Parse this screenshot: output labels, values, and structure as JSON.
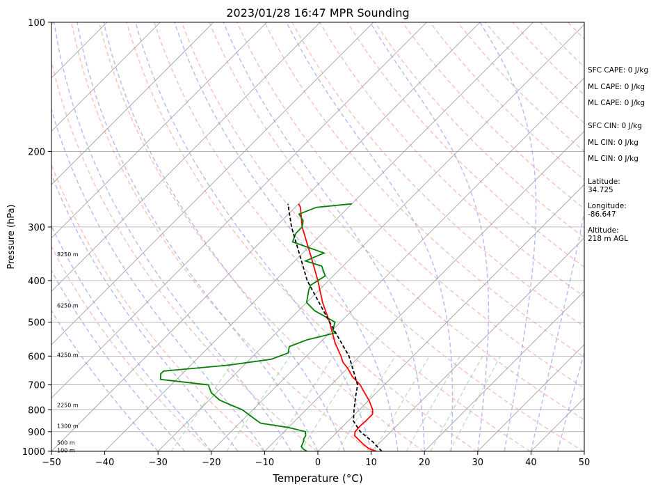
{
  "chart_data": {
    "type": "line",
    "title": "2023/01/28 16:47 MPR Sounding",
    "xlabel": "Temperature (°C)",
    "ylabel": "Pressure (hPa)",
    "xlim": [
      -50,
      50
    ],
    "ylim": [
      1000,
      100
    ],
    "yscale": "log",
    "skew_t": true,
    "grid": true,
    "x_ticks": [
      -50,
      -40,
      -30,
      -20,
      -10,
      0,
      10,
      20,
      30,
      40,
      50
    ],
    "y_ticks": [
      100,
      200,
      300,
      400,
      500,
      600,
      700,
      800,
      900,
      1000
    ],
    "series": [
      {
        "role": "temperature",
        "color": "#ff0000",
        "points": [
          [
            1000,
            11
          ],
          [
            985,
            9
          ],
          [
            960,
            7
          ],
          [
            940,
            5.5
          ],
          [
            920,
            4
          ],
          [
            900,
            3.3
          ],
          [
            870,
            3.2
          ],
          [
            850,
            3.3
          ],
          [
            820,
            3.3
          ],
          [
            800,
            2.5
          ],
          [
            760,
            0
          ],
          [
            720,
            -3
          ],
          [
            700,
            -4.5
          ],
          [
            670,
            -7.5
          ],
          [
            640,
            -10
          ],
          [
            620,
            -12
          ],
          [
            600,
            -13.5
          ],
          [
            560,
            -17
          ],
          [
            500,
            -22
          ],
          [
            450,
            -27
          ],
          [
            400,
            -32
          ],
          [
            350,
            -38
          ],
          [
            300,
            -45
          ],
          [
            270,
            -49
          ],
          [
            265,
            -50
          ]
        ]
      },
      {
        "role": "dewpoint",
        "color": "#008000",
        "points": [
          [
            1000,
            -2
          ],
          [
            990,
            -3
          ],
          [
            975,
            -4
          ],
          [
            950,
            -4.5
          ],
          [
            935,
            -5
          ],
          [
            920,
            -5.2
          ],
          [
            900,
            -6
          ],
          [
            880,
            -10
          ],
          [
            860,
            -16
          ],
          [
            845,
            -17.5
          ],
          [
            800,
            -22
          ],
          [
            780,
            -25
          ],
          [
            760,
            -28
          ],
          [
            730,
            -31
          ],
          [
            700,
            -33
          ],
          [
            680,
            -43
          ],
          [
            660,
            -44
          ],
          [
            650,
            -44
          ],
          [
            630,
            -33
          ],
          [
            610,
            -26
          ],
          [
            590,
            -24
          ],
          [
            570,
            -25
          ],
          [
            550,
            -23
          ],
          [
            530,
            -19
          ],
          [
            520,
            -20
          ],
          [
            500,
            -21
          ],
          [
            470,
            -27
          ],
          [
            450,
            -30
          ],
          [
            420,
            -32
          ],
          [
            410,
            -32.5
          ],
          [
            400,
            -32
          ],
          [
            390,
            -31.5
          ],
          [
            370,
            -34
          ],
          [
            360,
            -38
          ],
          [
            345,
            -36
          ],
          [
            325,
            -44
          ],
          [
            310,
            -45
          ],
          [
            300,
            -45
          ],
          [
            290,
            -46
          ],
          [
            280,
            -48
          ],
          [
            270,
            -46
          ],
          [
            265,
            -40
          ]
        ]
      },
      {
        "role": "parcel",
        "color": "#000000",
        "dashed": true,
        "points": [
          [
            1000,
            12
          ],
          [
            950,
            8.5
          ],
          [
            900,
            4.3
          ],
          [
            850,
            1
          ],
          [
            800,
            -1
          ],
          [
            750,
            -3
          ],
          [
            700,
            -5
          ],
          [
            600,
            -12
          ],
          [
            500,
            -22
          ],
          [
            400,
            -34
          ],
          [
            300,
            -47
          ],
          [
            265,
            -52
          ]
        ]
      }
    ],
    "altitude_labels": [
      {
        "p": 347,
        "label": "8250 m"
      },
      {
        "p": 457,
        "label": "6250 m"
      },
      {
        "p": 596,
        "label": "4250 m"
      },
      {
        "p": 780,
        "label": "2250 m"
      },
      {
        "p": 872,
        "label": "1300 m"
      },
      {
        "p": 954,
        "label": "500 m"
      },
      {
        "p": 995,
        "label": "100 m"
      }
    ],
    "info_panel": [
      "SFC CAPE: 0 J/kg",
      "ML CAPE: 0 J/kg",
      "ML CAPE: 0 J/kg",
      "SFC CIN: 0 J/kg",
      "ML CIN: 0 J/kg",
      "ML CIN: 0 J/kg",
      "Latitude:",
      "34.725",
      "Longitude:",
      "-86.647",
      "Altitude:",
      "218 m AGL"
    ],
    "colors": {
      "temperature": "#ff0000",
      "dewpoint": "#008000",
      "parcel": "#000000",
      "dry_adiabat": "#ff9999",
      "moist_adiabat": "#9999ff",
      "mixing_ratio": "#99cc99",
      "isotherm": "#999999"
    }
  }
}
